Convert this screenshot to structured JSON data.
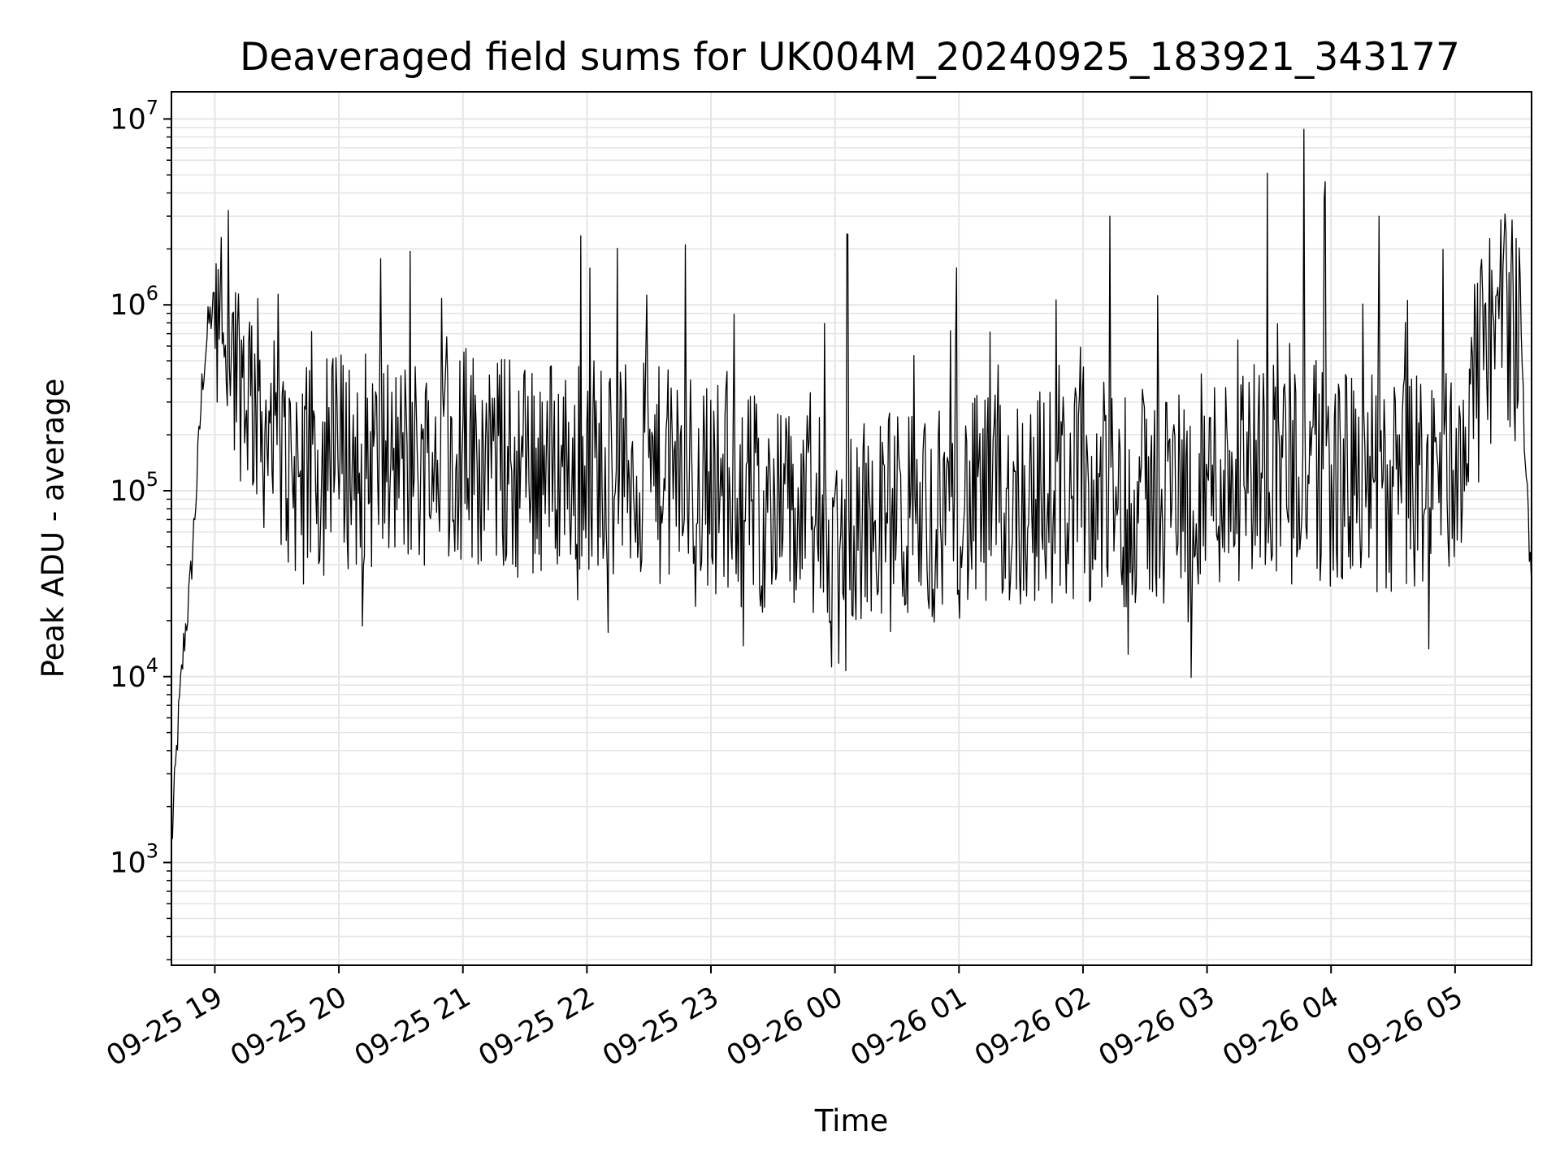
{
  "chart_data": {
    "type": "line",
    "title": "Deaveraged field sums for UK004M_20240925_183921_343177",
    "xlabel": "Time",
    "ylabel": "Peak ADU - average",
    "y_scale": "log",
    "ylim": [
      280,
      14000000
    ],
    "xlim": [
      "2024-09-25 18:39",
      "2024-09-26 05:37"
    ],
    "x_ticks": [
      "09-25 19",
      "09-25 20",
      "09-25 21",
      "09-25 22",
      "09-25 23",
      "09-26 00",
      "09-26 01",
      "09-26 02",
      "09-26 03",
      "09-26 04",
      "09-26 05"
    ],
    "y_ticks": [
      {
        "base": "10",
        "exp": "3",
        "value": 1000
      },
      {
        "base": "10",
        "exp": "4",
        "value": 10000
      },
      {
        "base": "10",
        "exp": "5",
        "value": 100000
      },
      {
        "base": "10",
        "exp": "6",
        "value": 1000000
      },
      {
        "base": "10",
        "exp": "7",
        "value": 10000000
      }
    ],
    "grid": true,
    "line_color": "#000000",
    "grid_color": "#e5e5e5",
    "series": [
      {
        "x": [
          "2024-09-25 18:39",
          "2024-09-25 18:42",
          "2024-09-25 18:45",
          "2024-09-25 18:48",
          "2024-09-25 18:51",
          "2024-09-25 18:54",
          "2024-09-25 18:57",
          "2024-09-25 19:00",
          "2024-09-25 19:05",
          "2024-09-25 19:10",
          "2024-09-25 19:20",
          "2024-09-25 19:30",
          "2024-09-25 19:45",
          "2024-09-25 20:00",
          "2024-09-25 20:30",
          "2024-09-25 21:00",
          "2024-09-25 21:30",
          "2024-09-25 22:00",
          "2024-09-25 22:30",
          "2024-09-25 23:00",
          "2024-09-25 23:30",
          "2024-09-26 00:00",
          "2024-09-26 00:30",
          "2024-09-26 01:00",
          "2024-09-26 01:30",
          "2024-09-26 02:00",
          "2024-09-26 02:30",
          "2024-09-26 03:00",
          "2024-09-26 03:30",
          "2024-09-26 04:00",
          "2024-09-26 04:30",
          "2024-09-26 05:00",
          "2024-09-26 05:15",
          "2024-09-26 05:25",
          "2024-09-26 05:32",
          "2024-09-26 05:37"
        ],
        "y": [
          1200,
          5000,
          15000,
          30000,
          100000,
          400000,
          800000,
          1000000,
          700000,
          500000,
          300000,
          150000,
          120000,
          150000,
          140000,
          160000,
          130000,
          150000,
          120000,
          110000,
          80000,
          60000,
          70000,
          80000,
          90000,
          100000,
          90000,
          110000,
          150000,
          120000,
          100000,
          130000,
          600000,
          1000000,
          500000,
          30000
        ]
      }
    ],
    "annotated_peaks": [
      {
        "x": "2024-09-25 21:57",
        "y": 2350000
      },
      {
        "x": "2024-09-26 00:06",
        "y": 2400000
      },
      {
        "x": "2024-09-26 02:13",
        "y": 3000000
      },
      {
        "x": "2024-09-26 03:29",
        "y": 5100000
      },
      {
        "x": "2024-09-26 03:47",
        "y": 8800000
      },
      {
        "x": "2024-09-26 03:57",
        "y": 4600000
      },
      {
        "x": "2024-09-26 04:23",
        "y": 3000000
      },
      {
        "x": "2024-09-26 00:02",
        "y": 11800,
        "kind": "minimum"
      }
    ]
  }
}
